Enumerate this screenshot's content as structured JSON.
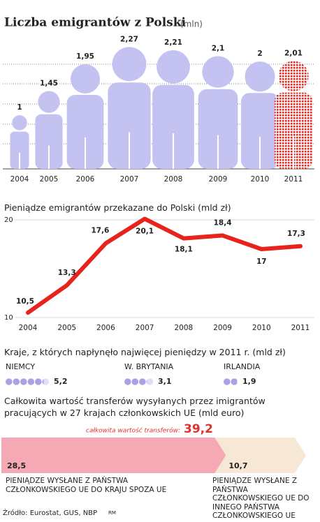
{
  "chart_data": [
    {
      "type": "pictograph",
      "title": "Liczba emigrantów z Polski",
      "subtitle": "(mln)",
      "categories": [
        "2004",
        "2005",
        "2006",
        "2007",
        "2008",
        "2009",
        "2010",
        "2011"
      ],
      "values": [
        1,
        1.45,
        1.95,
        2.27,
        2.21,
        2.1,
        2,
        2.01
      ],
      "value_labels": [
        "1",
        "1,45",
        "1,95",
        "2,27",
        "2,21",
        "2,1",
        "2",
        "2,01"
      ],
      "colors": [
        "#c4c2f0",
        "#c4c2f0",
        "#c4c2f0",
        "#c4c2f0",
        "#c4c2f0",
        "#c4c2f0",
        "#c4c2f0",
        "#e0302a"
      ],
      "ylim": [
        0,
        2.6
      ]
    },
    {
      "type": "line",
      "title": "Pieniądze emigrantów przekazane do Polski (mld zł)",
      "categories": [
        "2004",
        "2005",
        "2006",
        "2007",
        "2008",
        "2009",
        "2010",
        "2011"
      ],
      "values": [
        10.5,
        13.3,
        17.6,
        20.1,
        18.1,
        18.4,
        17,
        17.3
      ],
      "value_labels": [
        "10,5",
        "13,3",
        "17,6",
        "20,1",
        "18,1",
        "18,4",
        "17",
        "17,3"
      ],
      "ylim": [
        10,
        20
      ],
      "yticks": [
        10,
        20
      ],
      "color": "#e8231c"
    },
    {
      "type": "dots",
      "title": "Kraje, z których napłynęło najwięcej pieniędzy w 2011 r. (mld zł)",
      "categories": [
        "NIEMCY",
        "W. BRYTANIA",
        "IRLANDIA"
      ],
      "values": [
        5.2,
        3.1,
        1.9
      ],
      "value_labels": [
        "5,2",
        "3,1",
        "1,9"
      ],
      "color": "#a9a3e6"
    },
    {
      "type": "arrow_bar",
      "title": "Całkowita wartość transferów wysyłanych przez imigrantów pracujących w 27 krajach członkowskich UE (mld euro)",
      "total_label": "całkowita wartość transferów:",
      "total": 39.2,
      "total_value_label": "39,2",
      "categories": [
        "PIENIĄDZE WYSŁANE Z PAŃSTWA CZŁONKOWSKIEGO UE DO KRAJU SPOZA UE",
        "PIENIĄDZE WYSŁANE Z PAŃSTWA CZŁONKOWSKIEGO UE DO INNEGO PAŃSTWA CZŁONKOWSKIEGO UE"
      ],
      "values": [
        28.5,
        10.7
      ],
      "value_labels": [
        "28,5",
        "10,7"
      ],
      "colors": [
        "#f4a9b5",
        "#f6e8d4"
      ]
    }
  ],
  "source": "Źródło: Eurostat, GUS, NBP",
  "credit": "RM"
}
